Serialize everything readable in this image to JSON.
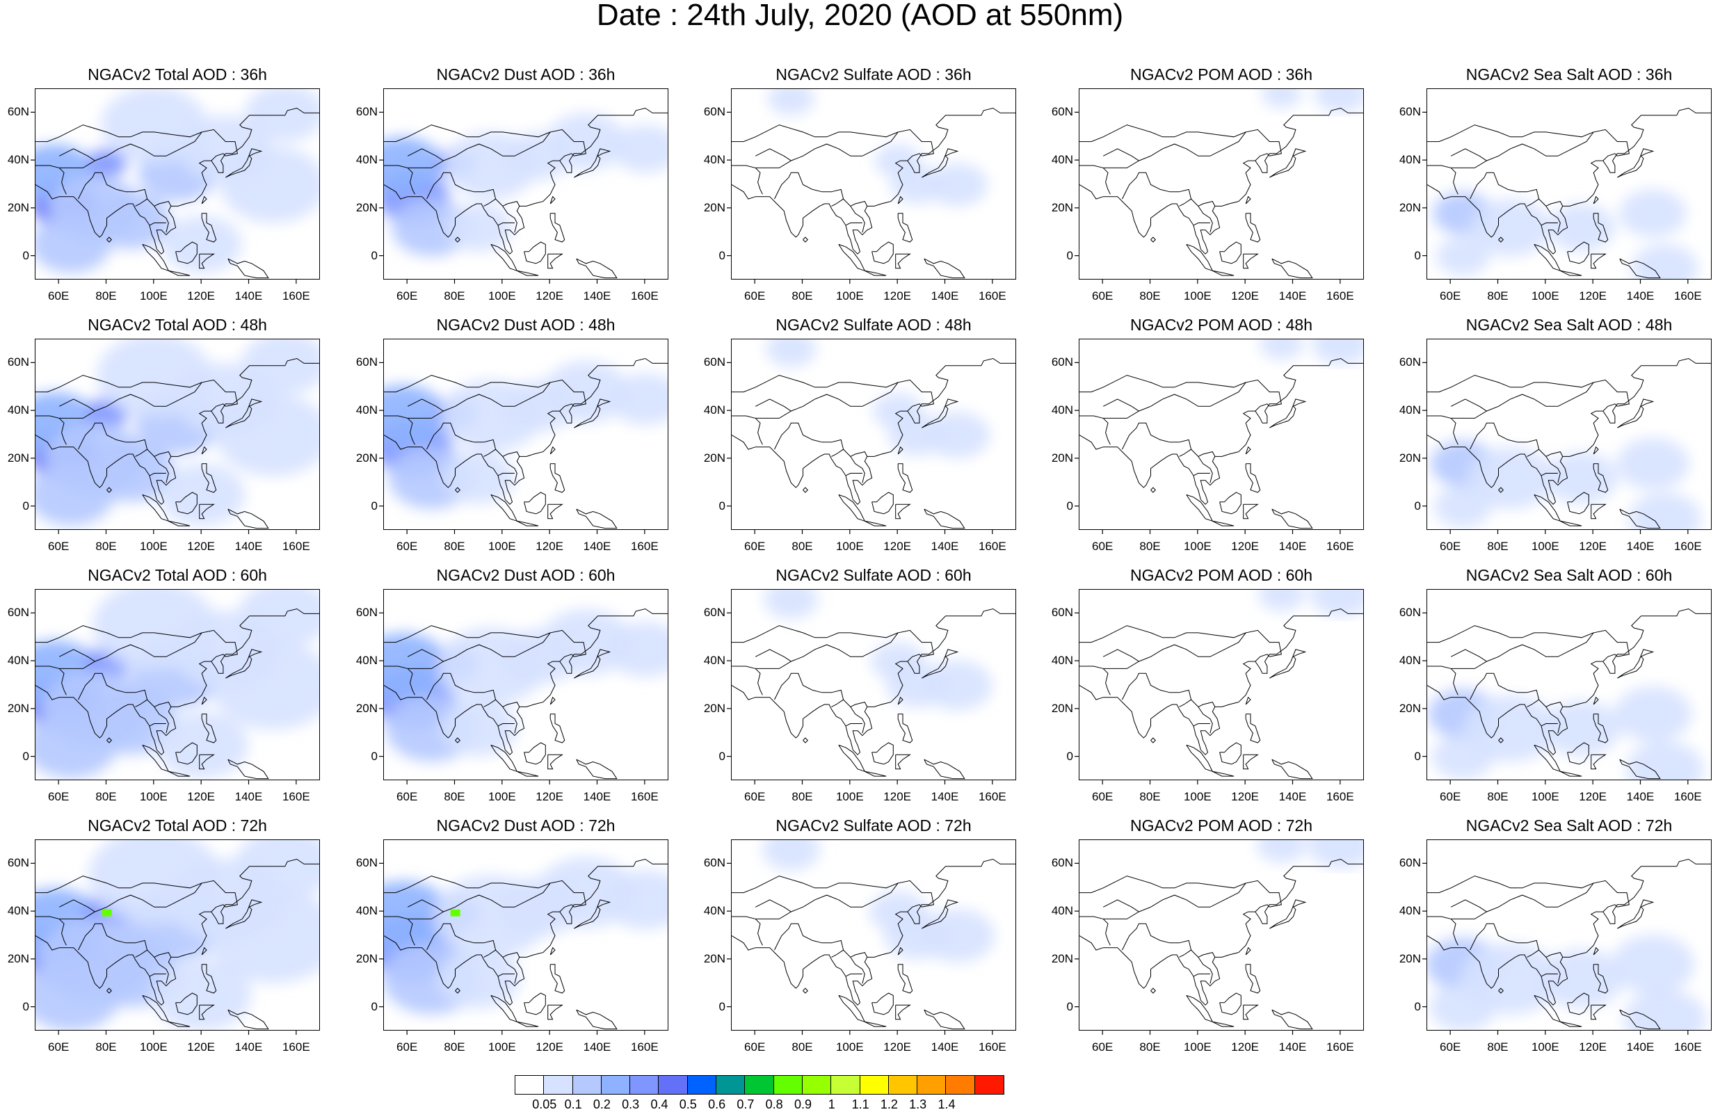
{
  "title": "Date : 24th July, 2020 (AOD at 550nm)",
  "lat_ticks": [
    "60N",
    "40N",
    "20N",
    "0"
  ],
  "lat_values": [
    60,
    40,
    20,
    0
  ],
  "lon_ticks": [
    "60E",
    "80E",
    "100E",
    "120E",
    "140E",
    "160E"
  ],
  "lon_values": [
    60,
    80,
    100,
    120,
    140,
    160
  ],
  "extent": {
    "lon": [
      50,
      170
    ],
    "lat": [
      -10,
      70
    ]
  },
  "columns": [
    {
      "species": "Total",
      "key": "total"
    },
    {
      "species": "Dust",
      "key": "dust"
    },
    {
      "species": "Sulfate",
      "key": "sulfate"
    },
    {
      "species": "POM",
      "key": "pom"
    },
    {
      "species": "Sea Salt",
      "key": "seasalt"
    }
  ],
  "panels": [
    [
      "NGACv2 Total AOD : 36h",
      "NGACv2 Dust AOD : 36h",
      "NGACv2 Sulfate AOD : 36h",
      "NGACv2 POM AOD : 36h",
      "NGACv2 Sea Salt AOD : 36h"
    ],
    [
      "NGACv2 Total AOD : 48h",
      "NGACv2 Dust AOD : 48h",
      "NGACv2 Sulfate AOD : 48h",
      "NGACv2 POM AOD : 48h",
      "NGACv2 Sea Salt AOD : 48h"
    ],
    [
      "NGACv2 Total AOD : 60h",
      "NGACv2 Dust AOD : 60h",
      "NGACv2 Sulfate AOD : 60h",
      "NGACv2 POM AOD : 60h",
      "NGACv2 Sea Salt AOD : 60h"
    ],
    [
      "NGACv2 Total AOD : 72h",
      "NGACv2 Dust AOD : 72h",
      "NGACv2 Sulfate AOD : 72h",
      "NGACv2 POM AOD : 72h",
      "NGACv2 Sea Salt  AOD : 72h"
    ]
  ],
  "colorbar": {
    "colors": [
      "#ffffff",
      "#d6e2ff",
      "#b5c9ff",
      "#8eb2ff",
      "#7f96ff",
      "#6370f8",
      "#0063ff",
      "#009696",
      "#00c633",
      "#63ff00",
      "#96ff00",
      "#c6ff33",
      "#ffff00",
      "#ffc600",
      "#ffa000",
      "#ff7c00",
      "#ff1900"
    ],
    "labels": [
      "0.05",
      "0.1",
      "0.2",
      "0.3",
      "0.4",
      "0.5",
      "0.6",
      "0.7",
      "0.8",
      "0.9",
      "1",
      "1.1",
      "1.2",
      "1.3",
      "1.4"
    ]
  },
  "hotspots": {
    "total": [
      {
        "lon": 62,
        "lat": 22,
        "r": 10,
        "level": 5
      },
      {
        "lon": 58,
        "lat": 35,
        "r": 12,
        "level": 3
      },
      {
        "lon": 80,
        "lat": 39,
        "r": 6,
        "level": 4
      },
      {
        "lon": 75,
        "lat": 20,
        "r": 14,
        "level": 2
      },
      {
        "lon": 90,
        "lat": 15,
        "r": 12,
        "level": 2
      },
      {
        "lon": 110,
        "lat": 35,
        "r": 12,
        "level": 2
      },
      {
        "lon": 130,
        "lat": 45,
        "r": 14,
        "level": 1
      },
      {
        "lon": 150,
        "lat": 30,
        "r": 16,
        "level": 1
      },
      {
        "lon": 100,
        "lat": 55,
        "r": 16,
        "level": 1
      },
      {
        "lon": 155,
        "lat": 60,
        "r": 12,
        "level": 1
      },
      {
        "lon": 120,
        "lat": 5,
        "r": 12,
        "level": 1
      },
      {
        "lon": 65,
        "lat": 5,
        "r": 12,
        "level": 2
      }
    ],
    "dust": [
      {
        "lon": 62,
        "lat": 25,
        "r": 11,
        "level": 4
      },
      {
        "lon": 58,
        "lat": 38,
        "r": 12,
        "level": 3
      },
      {
        "lon": 80,
        "lat": 39,
        "r": 6,
        "level": 4
      },
      {
        "lon": 70,
        "lat": 12,
        "r": 12,
        "level": 2
      },
      {
        "lon": 95,
        "lat": 38,
        "r": 14,
        "level": 1
      },
      {
        "lon": 115,
        "lat": 42,
        "r": 10,
        "level": 1
      },
      {
        "lon": 135,
        "lat": 48,
        "r": 12,
        "level": 1
      },
      {
        "lon": 160,
        "lat": 45,
        "r": 10,
        "level": 1
      },
      {
        "lon": 90,
        "lat": 12,
        "r": 10,
        "level": 1
      }
    ],
    "sulfate": [
      {
        "lon": 120,
        "lat": 40,
        "r": 7,
        "level": 1
      },
      {
        "lon": 128,
        "lat": 30,
        "r": 8,
        "level": 1
      },
      {
        "lon": 75,
        "lat": 66,
        "r": 7,
        "level": 1
      },
      {
        "lon": 145,
        "lat": 30,
        "r": 9,
        "level": 1
      }
    ],
    "pom": [
      {
        "lon": 160,
        "lat": 68,
        "r": 8,
        "level": 1
      },
      {
        "lon": 135,
        "lat": 68,
        "r": 6,
        "level": 1
      }
    ],
    "seasalt": [
      {
        "lon": 65,
        "lat": 18,
        "r": 9,
        "level": 2
      },
      {
        "lon": 85,
        "lat": 12,
        "r": 12,
        "level": 1
      },
      {
        "lon": 115,
        "lat": 12,
        "r": 10,
        "level": 1
      },
      {
        "lon": 145,
        "lat": 18,
        "r": 10,
        "level": 1
      },
      {
        "lon": 150,
        "lat": -5,
        "r": 10,
        "level": 1
      },
      {
        "lon": 65,
        "lat": 0,
        "r": 8,
        "level": 1
      }
    ]
  }
}
